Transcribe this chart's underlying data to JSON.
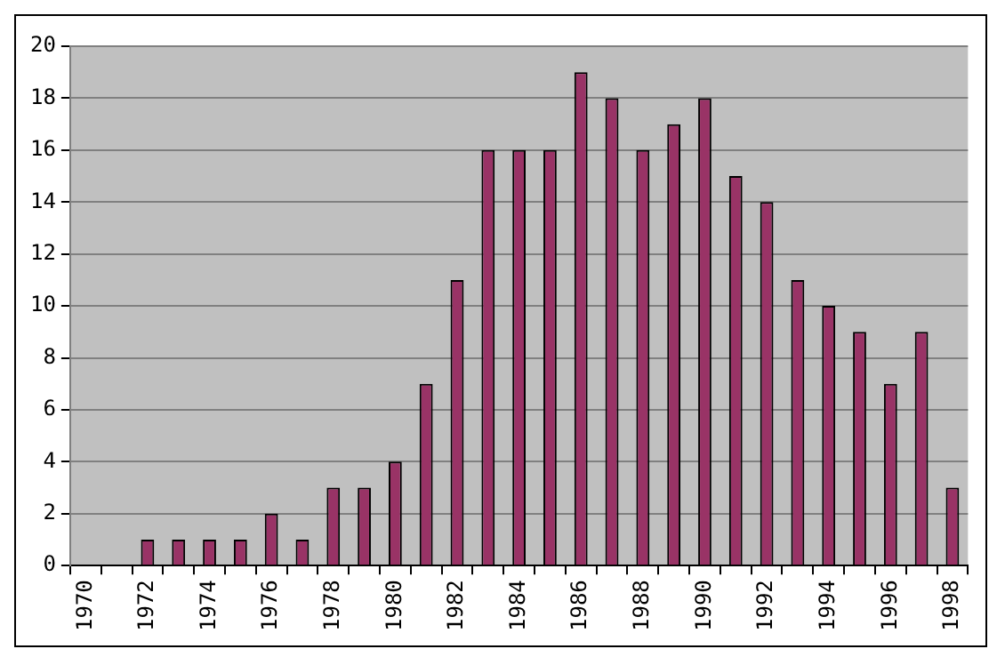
{
  "chart_data": {
    "type": "bar",
    "categories": [
      "1970",
      null,
      "1972",
      null,
      "1974",
      null,
      "1976",
      null,
      "1978",
      null,
      "1980",
      null,
      "1982",
      null,
      "1984",
      null,
      "1986",
      null,
      "1988",
      null,
      "1990",
      null,
      "1992",
      null,
      "1994",
      null,
      "1996",
      null,
      "1998"
    ],
    "values": [
      0,
      0,
      1,
      1,
      1,
      1,
      2,
      1,
      3,
      3,
      4,
      7,
      11,
      16,
      16,
      16,
      19,
      18,
      16,
      17,
      18,
      15,
      14,
      11,
      10,
      9,
      7,
      9,
      3
    ],
    "color": "#993366",
    "ylim": [
      0,
      20
    ],
    "yticks": [
      0,
      2,
      4,
      6,
      8,
      10,
      12,
      14,
      16,
      18,
      20
    ],
    "grid": "y",
    "legend": false
  }
}
